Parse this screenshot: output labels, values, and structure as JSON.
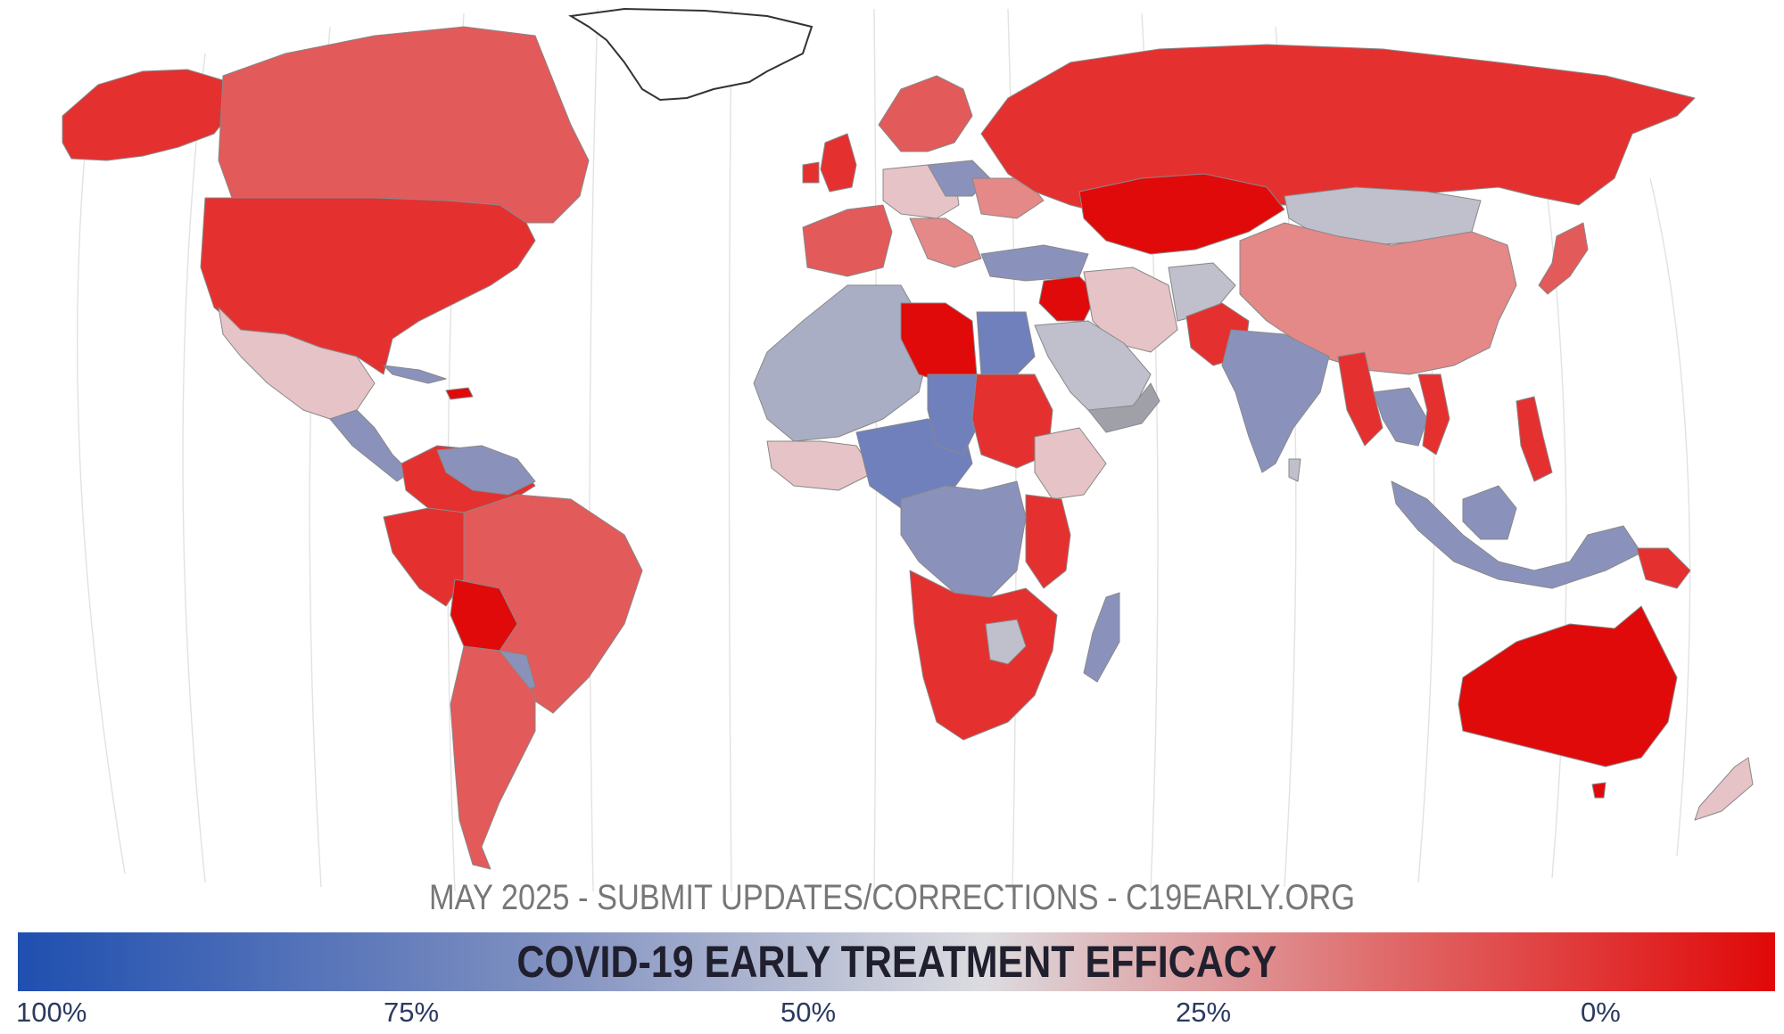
{
  "footer": "MAY 2025 - SUBMIT UPDATES/CORRECTIONS - C19EARLY.ORG",
  "legend": {
    "title": "COVID-19 EARLY TREATMENT EFFICACY",
    "ticks": [
      "100%",
      "75%",
      "50%",
      "25%",
      "0%"
    ],
    "gradient": [
      "#1f4fb0",
      "#8090c0",
      "#dcdce0",
      "#e06060",
      "#e00808"
    ]
  },
  "colors": {
    "strong_red": "#e00a0a",
    "red": "#e53030",
    "medium_red": "#e25a5a",
    "light_red": "#e48888",
    "pink": "#e6c3c6",
    "grey": "#bfc0cc",
    "grey_blue": "#aaaec4",
    "blue_grey": "#8a92bc",
    "blue": "#6f80bc",
    "dark_grey": "#a0a0a8",
    "no_data": "#ffffff"
  }
}
